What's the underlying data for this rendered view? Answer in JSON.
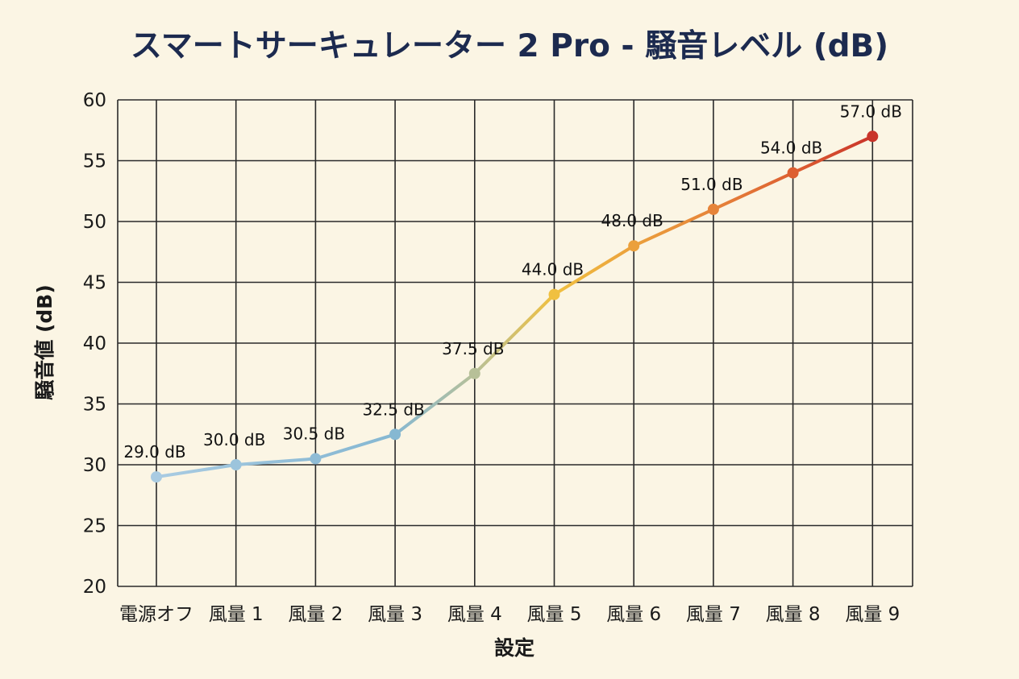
{
  "chart_data": {
    "type": "line",
    "title": "スマートサーキュレーター 2 Pro - 騒音レベル (dB)",
    "xlabel": "設定",
    "ylabel": "騒音値 (dB)",
    "categories": [
      "電源オフ",
      "風量 1",
      "風量 2",
      "風量 3",
      "風量 4",
      "風量 5",
      "風量 6",
      "風量 7",
      "風量 8",
      "風量 9"
    ],
    "values": [
      29.0,
      30.0,
      30.5,
      32.5,
      37.5,
      44.0,
      48.0,
      51.0,
      54.0,
      57.0
    ],
    "data_labels": [
      "29.0 dB",
      "30.0 dB",
      "30.5 dB",
      "32.5 dB",
      "37.5 dB",
      "44.0 dB",
      "48.0 dB",
      "51.0 dB",
      "54.0 dB",
      "57.0 dB"
    ],
    "ylim": [
      20,
      60
    ],
    "yticks": [
      20,
      25,
      30,
      35,
      40,
      45,
      50,
      55,
      60
    ],
    "grid": true,
    "legend": "none",
    "point_colors": [
      "#a9cbe2",
      "#9cc4dc",
      "#8fbcd6",
      "#86b8d2",
      "#b7c098",
      "#f0c040",
      "#eba03c",
      "#e6843a",
      "#dd5f31",
      "#c9342a"
    ]
  }
}
